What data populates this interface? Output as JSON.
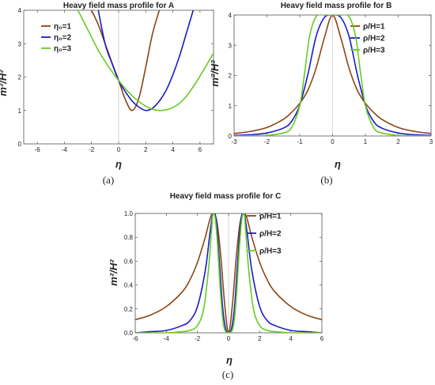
{
  "chart_data": [
    {
      "type": "line",
      "title": "Heavy field mass profile for A",
      "xlabel": "η",
      "ylabel": "m²/H²",
      "xlim": [
        -7,
        7
      ],
      "ylim": [
        0,
        4
      ],
      "xticks": [
        "-6",
        "-4",
        "-2",
        "0",
        "2",
        "4",
        "6"
      ],
      "yticks": [
        "0",
        "1",
        "2",
        "3",
        "4"
      ],
      "legend_position": "top-left",
      "caption": "(a)",
      "series": [
        {
          "name": "η₀=1",
          "color": "#8b4513",
          "x": [
            -2,
            -1.5,
            -1,
            -0.5,
            0,
            0.5,
            1,
            1.5,
            2,
            2.5,
            3
          ],
          "values": [
            4.0,
            3.57,
            3.0,
            2.44,
            1.9,
            1.32,
            1.0,
            1.38,
            2.3,
            3.3,
            4.0
          ]
        },
        {
          "name": "η₀=2",
          "color": "#1a1acc",
          "x": [
            -1.5,
            -1,
            -0.5,
            0,
            0.5,
            1,
            1.5,
            2,
            2.5,
            3,
            3.5,
            4,
            4.5,
            5,
            5.5
          ],
          "values": [
            4.0,
            3.0,
            2.42,
            1.9,
            1.56,
            1.28,
            1.1,
            1.0,
            1.07,
            1.28,
            1.6,
            2.07,
            2.64,
            3.32,
            4.0
          ]
        },
        {
          "name": "η₀=3",
          "color": "#66cc22",
          "x": [
            -3,
            -2.5,
            -2,
            -1.5,
            -1,
            -0.5,
            0,
            0.5,
            1,
            1.5,
            2,
            2.5,
            3,
            3.5,
            4,
            4.5,
            5,
            5.5,
            6,
            6.5,
            7
          ],
          "values": [
            4.0,
            3.6,
            3.2,
            2.8,
            2.47,
            2.17,
            1.9,
            1.65,
            1.44,
            1.27,
            1.13,
            1.04,
            1.0,
            1.02,
            1.09,
            1.22,
            1.43,
            1.71,
            2.03,
            2.37,
            2.72
          ]
        }
      ]
    },
    {
      "type": "line",
      "title": "Heavy field mass profile for B",
      "xlabel": "η",
      "ylabel": "m²/H²",
      "xlim": [
        -3,
        3
      ],
      "ylim": [
        0,
        4
      ],
      "xticks": [
        "-3",
        "-2",
        "-1",
        "0",
        "1",
        "2",
        "3"
      ],
      "yticks": [
        "0",
        "1",
        "2",
        "3",
        "4"
      ],
      "legend_position": "top-right",
      "caption": "(b)",
      "series": [
        {
          "name": "ρ/H=1",
          "color": "#8b4513",
          "x": [
            -3,
            -2.5,
            -2,
            -1.5,
            -1.25,
            -1,
            -0.75,
            -0.5,
            -0.25,
            0,
            0.25,
            0.5,
            0.75,
            1,
            1.25,
            1.5,
            2,
            2.5,
            3
          ],
          "values": [
            0.08,
            0.15,
            0.28,
            0.55,
            0.78,
            1.08,
            1.52,
            2.25,
            3.25,
            4.0,
            3.25,
            2.25,
            1.52,
            1.08,
            0.78,
            0.55,
            0.28,
            0.15,
            0.08
          ]
        },
        {
          "name": "ρ/H=2",
          "color": "#1a1acc",
          "x": [
            -3,
            -2.5,
            -2,
            -1.5,
            -1.25,
            -1,
            -0.75,
            -0.5,
            -0.25,
            0,
            0.25,
            0.5,
            0.75,
            1,
            1.25,
            1.5,
            2,
            2.5,
            3
          ],
          "values": [
            0.02,
            0.04,
            0.1,
            0.26,
            0.48,
            1.02,
            2.05,
            3.3,
            3.92,
            4.0,
            3.92,
            3.3,
            2.05,
            1.02,
            0.48,
            0.26,
            0.1,
            0.04,
            0.02
          ]
        },
        {
          "name": "ρ/H=3",
          "color": "#66cc22",
          "x": [
            -3,
            -2.5,
            -2,
            -1.5,
            -1.25,
            -1,
            -0.85,
            -0.7,
            -0.5,
            -0.25,
            0,
            0.25,
            0.5,
            0.7,
            0.85,
            1,
            1.25,
            1.5,
            2,
            2.5,
            3
          ],
          "values": [
            0.0,
            0.01,
            0.02,
            0.1,
            0.28,
            1.0,
            2.1,
            3.3,
            3.95,
            4.0,
            4.0,
            4.0,
            3.95,
            3.3,
            2.1,
            1.0,
            0.28,
            0.1,
            0.02,
            0.01,
            0.0
          ]
        }
      ]
    },
    {
      "type": "line",
      "title": "Heavy field mass profile for C",
      "xlabel": "η",
      "ylabel": "m²/H²",
      "xlim": [
        -6,
        6
      ],
      "ylim": [
        0,
        1
      ],
      "xticks": [
        "-6",
        "-4",
        "-2",
        "0",
        "2",
        "4",
        "6"
      ],
      "yticks": [
        "0.0",
        "0.2",
        "0.4",
        "0.6",
        "0.8",
        "1.0"
      ],
      "legend_position": "top-right",
      "caption": "(c)",
      "series": [
        {
          "name": "ρ/H=1",
          "color": "#8b4513",
          "x": [
            -6,
            -5,
            -4,
            -3,
            -2.5,
            -2,
            -1.5,
            -1.2,
            -1,
            -0.75,
            -0.5,
            -0.25,
            0,
            0.25,
            0.5,
            0.75,
            1,
            1.2,
            1.5,
            2,
            2.5,
            3,
            4,
            5,
            6
          ],
          "values": [
            0.11,
            0.15,
            0.22,
            0.34,
            0.44,
            0.59,
            0.8,
            0.95,
            1.0,
            0.93,
            0.64,
            0.24,
            0.0,
            0.24,
            0.64,
            0.93,
            1.0,
            0.95,
            0.8,
            0.59,
            0.44,
            0.34,
            0.22,
            0.15,
            0.11
          ]
        },
        {
          "name": "ρ/H=2",
          "color": "#1a1acc",
          "x": [
            -6,
            -5,
            -4,
            -3,
            -2.5,
            -2,
            -1.5,
            -1.2,
            -1,
            -0.8,
            -0.6,
            -0.4,
            -0.2,
            0,
            0.2,
            0.4,
            0.6,
            0.8,
            1,
            1.2,
            1.5,
            2,
            2.5,
            3,
            4,
            5,
            6
          ],
          "values": [
            0.0,
            0.01,
            0.02,
            0.06,
            0.1,
            0.22,
            0.52,
            0.83,
            1.0,
            0.95,
            0.62,
            0.24,
            0.04,
            0.0,
            0.04,
            0.24,
            0.62,
            0.95,
            1.0,
            0.83,
            0.52,
            0.22,
            0.1,
            0.06,
            0.02,
            0.01,
            0.0
          ]
        },
        {
          "name": "ρ/H=3",
          "color": "#66cc22",
          "x": [
            -6,
            -4,
            -3,
            -2.5,
            -2,
            -1.6,
            -1.3,
            -1.1,
            -1,
            -0.85,
            -0.7,
            -0.5,
            -0.3,
            0,
            0.3,
            0.5,
            0.7,
            0.85,
            1,
            1.1,
            1.3,
            1.6,
            2,
            2.5,
            3,
            4,
            6
          ],
          "values": [
            0.0,
            0.0,
            0.01,
            0.02,
            0.06,
            0.2,
            0.52,
            0.85,
            1.0,
            0.95,
            0.72,
            0.3,
            0.05,
            0.0,
            0.05,
            0.3,
            0.72,
            0.95,
            1.0,
            0.85,
            0.52,
            0.2,
            0.06,
            0.02,
            0.01,
            0.0,
            0.0
          ]
        }
      ]
    }
  ]
}
